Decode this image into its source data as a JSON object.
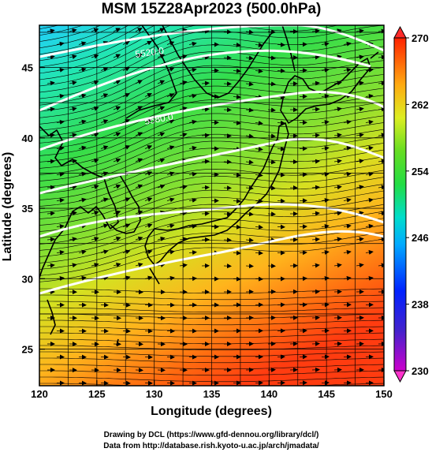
{
  "title": "MSM 15Z28Apr2023 (500.0hPa)",
  "x_axis": {
    "label": "Longitude (degrees)",
    "min": 120,
    "max": 150,
    "ticks": [
      "120",
      "125",
      "130",
      "135",
      "140",
      "145",
      "150"
    ]
  },
  "y_axis": {
    "label": "Latitude  (degrees)",
    "min": 22.4,
    "max": 48,
    "ticks": [
      "25",
      "30",
      "35",
      "40",
      "45"
    ]
  },
  "colorbar": {
    "min": 230,
    "max": 270,
    "ticks": [
      "230",
      "238",
      "246",
      "254",
      "262",
      "270"
    ]
  },
  "contours": {
    "color": "#ffffff",
    "labels": [
      "5520.0",
      "5580.0"
    ]
  },
  "footer": {
    "line1": "Drawing by DCL (https://www.gfd-dennou.org/library/dcl/)",
    "line2": "Data from http://database.rish.kyoto-u.ac.jp/arch/jmadata/"
  }
}
